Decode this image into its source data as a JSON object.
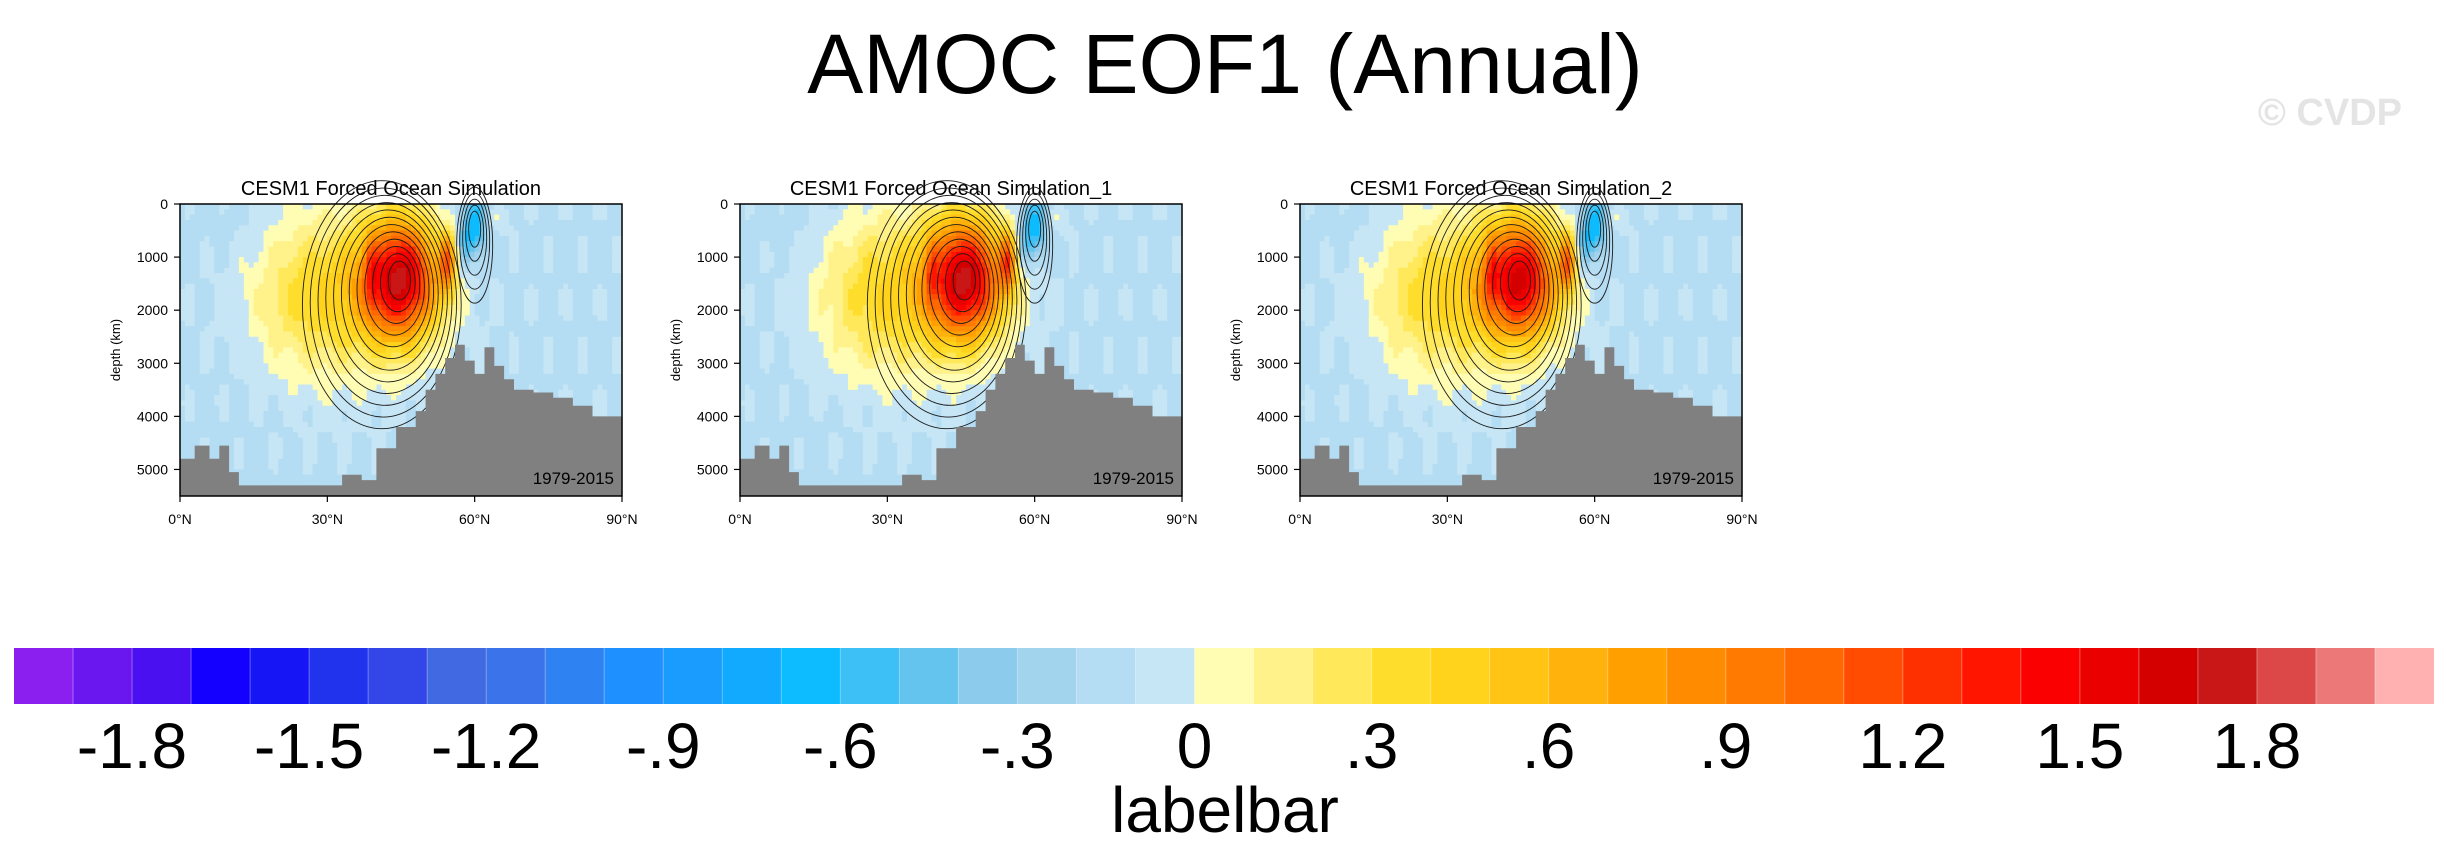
{
  "title": "AMOC EOF1 (Annual)",
  "watermark": "© CVDP",
  "chart_data": [
    {
      "type": "heatmap",
      "title": "CESM1 Forced Ocean Simulation",
      "period": "1979-2015",
      "ylabel": "depth (km)",
      "xlabel": "",
      "x_ticks": [
        "0°N",
        "30°N",
        "60°N",
        "90°N"
      ],
      "y_ticks": [
        "0",
        "1000",
        "2000",
        "3000",
        "4000",
        "5000"
      ],
      "xlim": [
        0,
        90
      ],
      "ylim": [
        5500,
        0
      ],
      "max_value": 1.6,
      "max_location": {
        "lat": 45,
        "depth": 1400
      },
      "min_value": -0.6,
      "min_location": {
        "lat": 60,
        "depth": 400
      }
    },
    {
      "type": "heatmap",
      "title": "CESM1 Forced Ocean Simulation_1",
      "period": "1979-2015",
      "ylabel": "depth (km)",
      "xlabel": "",
      "x_ticks": [
        "0°N",
        "30°N",
        "60°N",
        "90°N"
      ],
      "y_ticks": [
        "0",
        "1000",
        "2000",
        "3000",
        "4000",
        "5000"
      ],
      "xlim": [
        0,
        90
      ],
      "ylim": [
        5500,
        0
      ],
      "max_value": 1.6,
      "max_location": {
        "lat": 46,
        "depth": 1400
      },
      "min_value": -0.6,
      "min_location": {
        "lat": 60,
        "depth": 400
      }
    },
    {
      "type": "heatmap",
      "title": "CESM1 Forced Ocean Simulation_2",
      "period": "1979-2015",
      "ylabel": "depth (km)",
      "xlabel": "",
      "x_ticks": [
        "0°N",
        "30°N",
        "60°N",
        "90°N"
      ],
      "y_ticks": [
        "0",
        "1000",
        "2000",
        "3000",
        "4000",
        "5000"
      ],
      "xlim": [
        0,
        90
      ],
      "ylim": [
        5500,
        0
      ],
      "max_value": 1.5,
      "max_location": {
        "lat": 45,
        "depth": 1400
      },
      "min_value": -0.6,
      "min_location": {
        "lat": 60,
        "depth": 400
      }
    }
  ],
  "labelbar": {
    "title": "labelbar",
    "labels": [
      "-1.8",
      "-1.5",
      "-1.2",
      "-.9",
      "-.6",
      "-.3",
      "0",
      ".3",
      ".6",
      ".9",
      "1.2",
      "1.5",
      "1.8"
    ],
    "colors": [
      "#8a1fef",
      "#6a16ee",
      "#4a10f0",
      "#1300ff",
      "#1515f6",
      "#2233ee",
      "#3346e8",
      "#4169e1",
      "#3b74ea",
      "#2f82f1",
      "#1e90ff",
      "#1a9cff",
      "#12aaff",
      "#0cbcff",
      "#3cc0f6",
      "#64c4ee",
      "#8ccbeb",
      "#a3d4ee",
      "#b4dcf2",
      "#c6e5f5",
      "#fffdb3",
      "#fff28a",
      "#ffe95a",
      "#ffdd2c",
      "#ffd31c",
      "#ffc414",
      "#ffb20c",
      "#ffa000",
      "#ff8c00",
      "#ff7a00",
      "#ff6800",
      "#ff4c00",
      "#ff3000",
      "#ff1500",
      "#fa0000",
      "#eb0000",
      "#d40000",
      "#c91616",
      "#dc4848",
      "#ec7878",
      "#ffb0b0"
    ]
  }
}
